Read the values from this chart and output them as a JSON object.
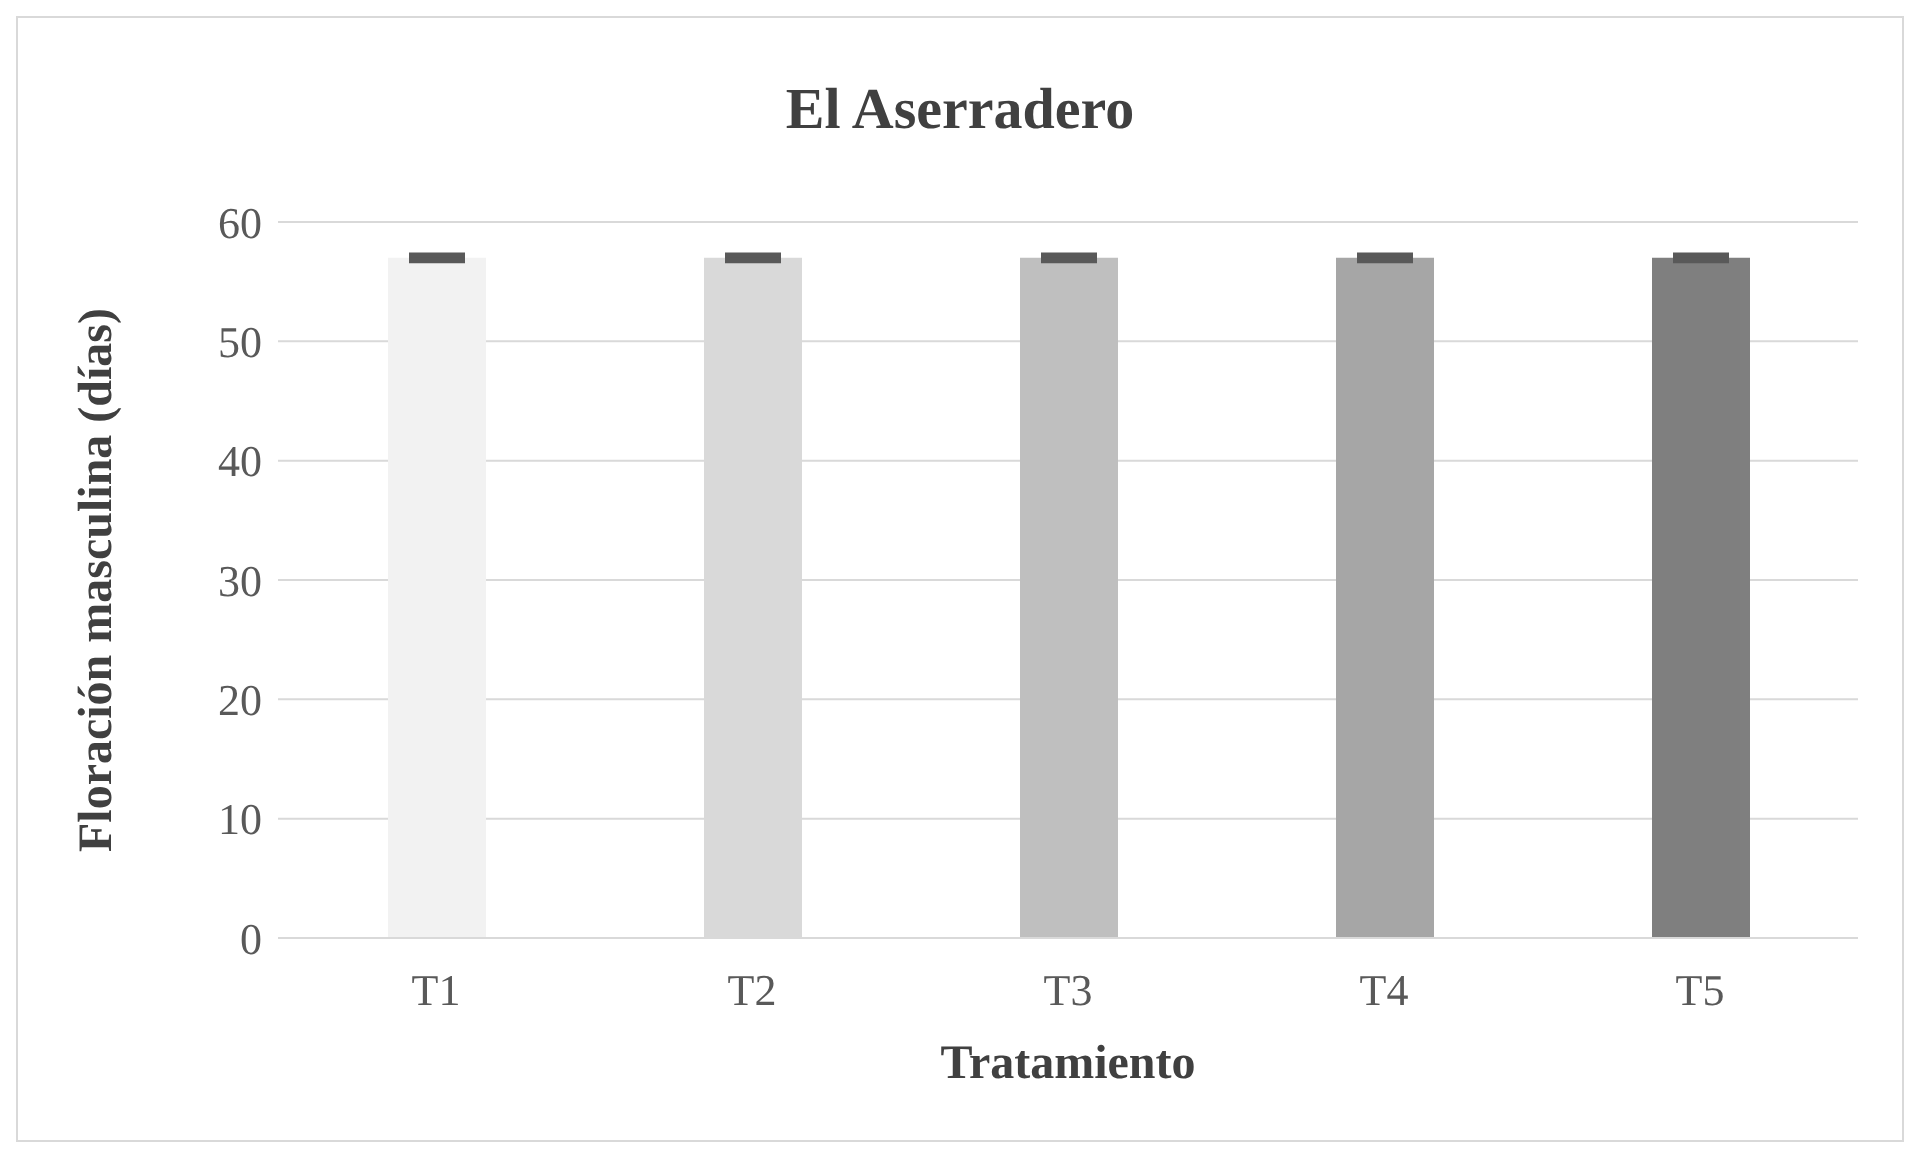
{
  "chart_data": {
    "type": "bar",
    "title": "El Aserradero",
    "xlabel": "Tratamiento",
    "ylabel": "Floración masculina (días)",
    "categories": [
      "T1",
      "T2",
      "T3",
      "T4",
      "T5"
    ],
    "values": [
      57,
      57,
      57,
      57,
      57
    ],
    "errors": [
      0.2,
      0.2,
      0.2,
      0.2,
      0.2
    ],
    "colors": [
      "#f2f2f2",
      "#d9d9d9",
      "#bfbfbf",
      "#a6a6a6",
      "#7f7f7f"
    ],
    "ylim": [
      0,
      60
    ],
    "yticks": [
      0,
      10,
      20,
      30,
      40,
      50,
      60
    ],
    "grid": "y"
  }
}
